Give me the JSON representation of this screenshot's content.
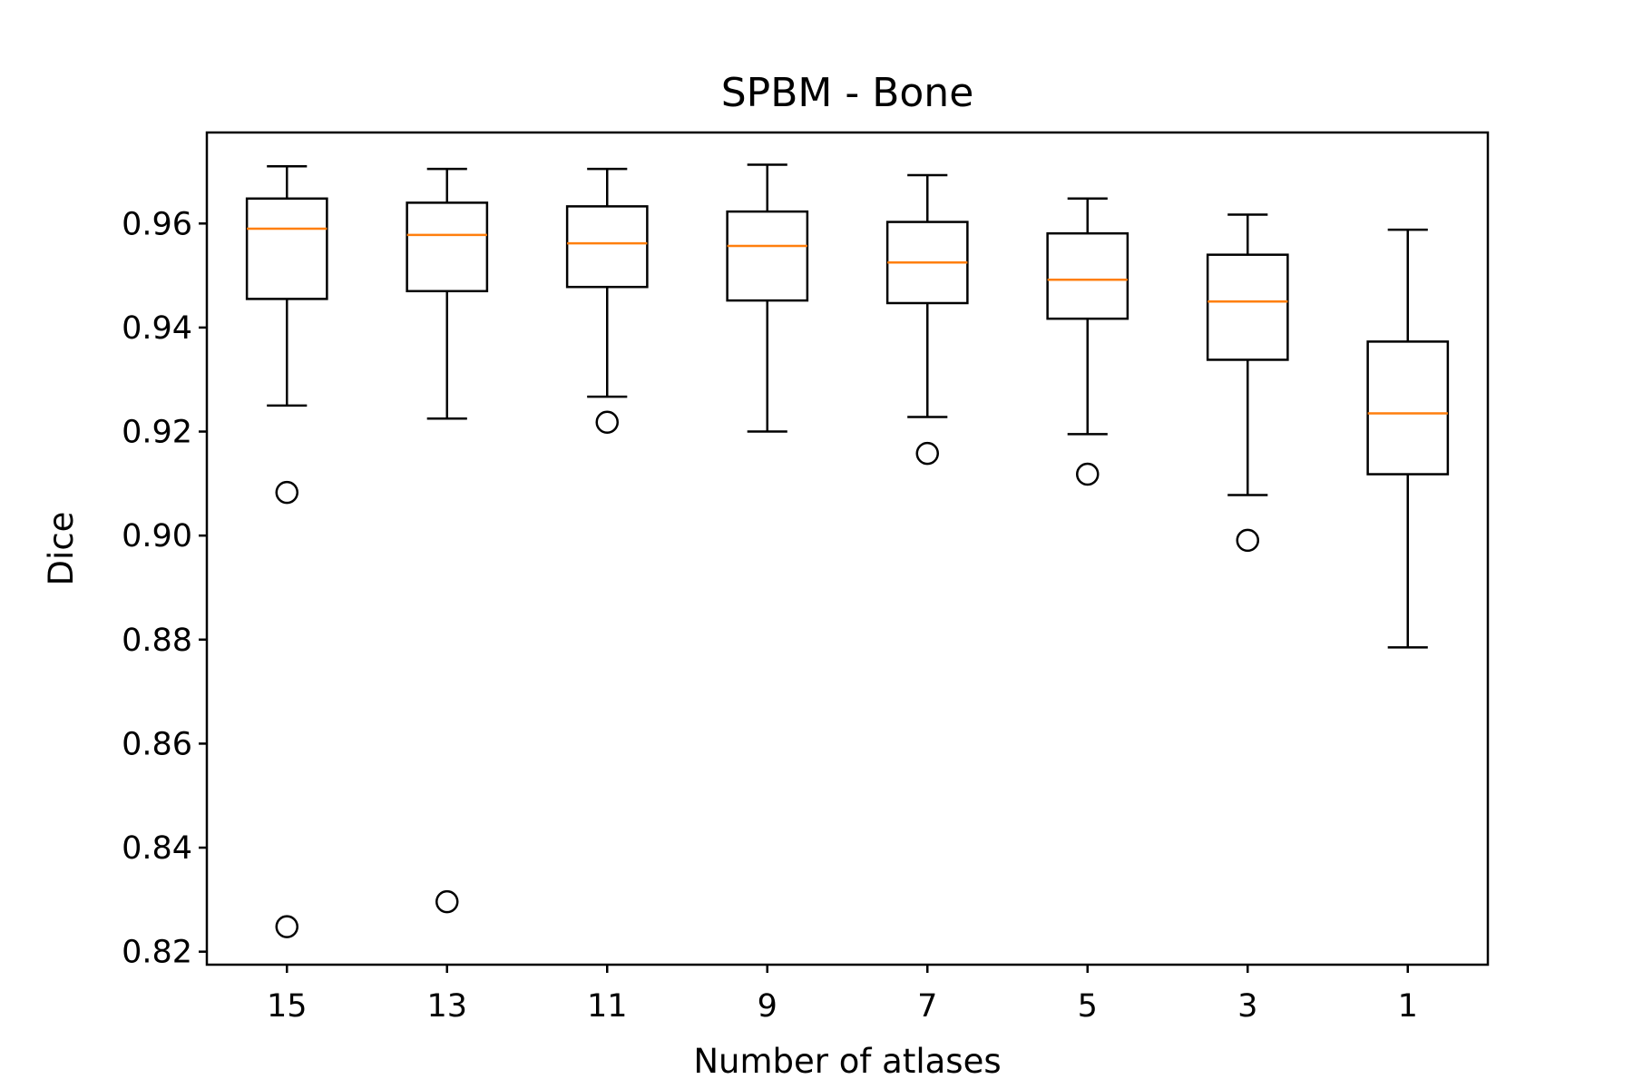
{
  "chart_data": {
    "type": "boxplot",
    "title": "SPBM - Bone",
    "xlabel": "Number of atlases",
    "ylabel": "Dice",
    "categories": [
      "15",
      "13",
      "11",
      "9",
      "7",
      "5",
      "3",
      "1"
    ],
    "ylim": [
      0.8175,
      0.9775
    ],
    "yticks": [
      0.82,
      0.84,
      0.86,
      0.88,
      0.9,
      0.92,
      0.94,
      0.96
    ],
    "ytick_labels": [
      "0.82",
      "0.84",
      "0.86",
      "0.88",
      "0.90",
      "0.92",
      "0.94",
      "0.96"
    ],
    "grid": false,
    "boxes": [
      {
        "category": "15",
        "whisker_low": 0.925,
        "q1": 0.9455,
        "median": 0.959,
        "q3": 0.9648,
        "whisker_high": 0.971,
        "outliers": [
          0.9083,
          0.8248
        ]
      },
      {
        "category": "13",
        "whisker_low": 0.9225,
        "q1": 0.947,
        "median": 0.9578,
        "q3": 0.964,
        "whisker_high": 0.9705,
        "outliers": [
          0.8296
        ]
      },
      {
        "category": "11",
        "whisker_low": 0.9267,
        "q1": 0.9478,
        "median": 0.9562,
        "q3": 0.9633,
        "whisker_high": 0.9705,
        "outliers": [
          0.9218
        ]
      },
      {
        "category": "9",
        "whisker_low": 0.92,
        "q1": 0.9452,
        "median": 0.9557,
        "q3": 0.9623,
        "whisker_high": 0.9713,
        "outliers": []
      },
      {
        "category": "7",
        "whisker_low": 0.9228,
        "q1": 0.9447,
        "median": 0.9525,
        "q3": 0.9603,
        "whisker_high": 0.9693,
        "outliers": [
          0.9158
        ]
      },
      {
        "category": "5",
        "whisker_low": 0.9195,
        "q1": 0.9417,
        "median": 0.9492,
        "q3": 0.9581,
        "whisker_high": 0.9648,
        "outliers": [
          0.9118
        ]
      },
      {
        "category": "3",
        "whisker_low": 0.9078,
        "q1": 0.9338,
        "median": 0.945,
        "q3": 0.954,
        "whisker_high": 0.9617,
        "outliers": [
          0.8991
        ]
      },
      {
        "category": "1",
        "whisker_low": 0.8785,
        "q1": 0.9118,
        "median": 0.9235,
        "q3": 0.9373,
        "whisker_high": 0.9588,
        "outliers": []
      }
    ],
    "box_color": "#000000",
    "median_color": "#ff7f0e"
  }
}
